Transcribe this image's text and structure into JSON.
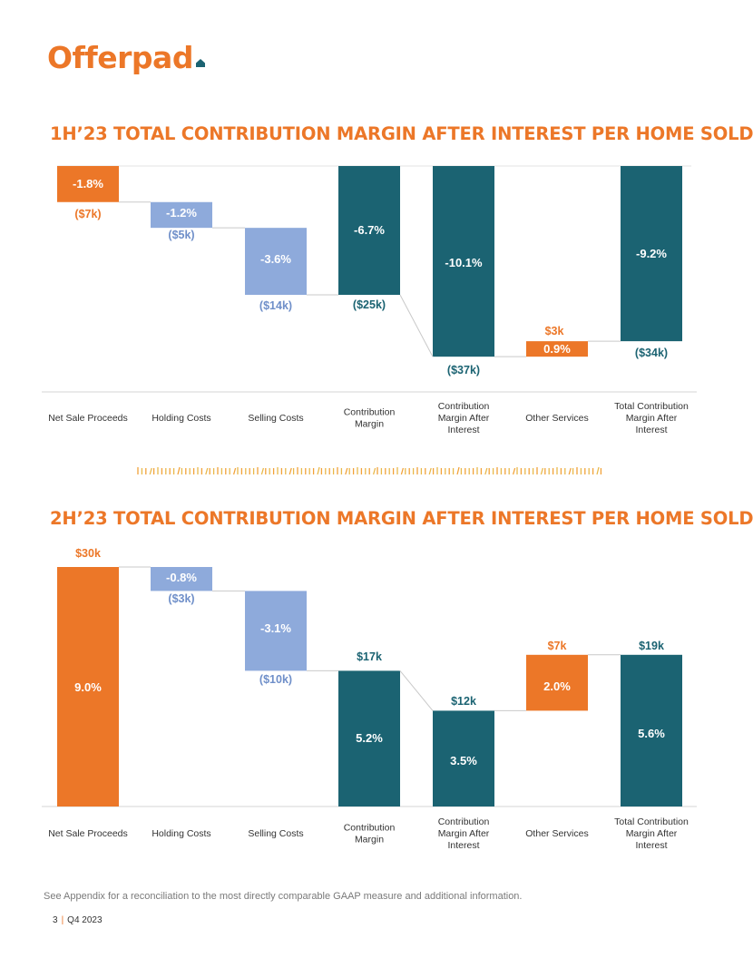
{
  "brand": {
    "name": "Offerpad",
    "accent": "#ec7728",
    "teal": "#1b6372",
    "blue": "#8eaadb",
    "blue_text": "#6f8fc9"
  },
  "footnote": "See Appendix for a reconciliation to the most directly comparable GAAP measure and additional information.",
  "page": {
    "number": "3",
    "separator": "|",
    "period": "Q4 2023"
  },
  "chart_data": [
    {
      "type": "waterfall",
      "title": "1H’23 TOTAL CONTRIBUTION MARGIN AFTER INTEREST PER HOME SOLD",
      "categories": [
        "Net Sale Proceeds",
        "Holding Costs",
        "Selling Costs",
        "Contribution Margin",
        "Contribution Margin After Interest",
        "Other Services",
        "Total Contribution Margin After Interest"
      ],
      "category_lines": [
        [
          "Net Sale Proceeds"
        ],
        [
          "Holding Costs"
        ],
        [
          "Selling Costs"
        ],
        [
          "Contribution",
          "Margin"
        ],
        [
          "Contribution",
          "Margin After",
          "Interest"
        ],
        [
          "Other Services"
        ],
        [
          "Total Contribution",
          "Margin After",
          "Interest"
        ]
      ],
      "unit": "$k",
      "bars": [
        {
          "label": "Net Sale Proceeds",
          "from": 0,
          "to": -7,
          "color": "orange",
          "pct": "-1.8%",
          "amount": "($7k)"
        },
        {
          "label": "Holding Costs",
          "from": -7,
          "to": -12,
          "color": "blue",
          "pct": "-1.2%",
          "amount": "($5k)"
        },
        {
          "label": "Selling Costs",
          "from": -12,
          "to": -25,
          "color": "blue",
          "pct": "-3.6%",
          "amount": "($14k)"
        },
        {
          "label": "Contribution Margin",
          "from": 0,
          "to": -25,
          "color": "teal",
          "pct": "-6.7%",
          "amount": "($25k)"
        },
        {
          "label": "Contribution Margin After Interest",
          "from": 0,
          "to": -37,
          "color": "teal",
          "pct": "-10.1%",
          "amount": "($37k)"
        },
        {
          "label": "Other Services",
          "from": -37,
          "to": -34,
          "color": "orange",
          "pct": "0.9%",
          "amount": "$3k"
        },
        {
          "label": "Total Contribution Margin After Interest",
          "from": 0,
          "to": -34,
          "color": "teal",
          "pct": "-9.2%",
          "amount": "($34k)"
        }
      ],
      "ylim": [
        -37,
        0
      ]
    },
    {
      "type": "waterfall",
      "title": "2H’23 TOTAL CONTRIBUTION MARGIN AFTER INTEREST PER HOME SOLD",
      "categories": [
        "Net Sale Proceeds",
        "Holding Costs",
        "Selling Costs",
        "Contribution Margin",
        "Contribution Margin After Interest",
        "Other Services",
        "Total Contribution Margin After Interest"
      ],
      "category_lines": [
        [
          "Net Sale Proceeds"
        ],
        [
          "Holding Costs"
        ],
        [
          "Selling Costs"
        ],
        [
          "Contribution",
          "Margin"
        ],
        [
          "Contribution",
          "Margin After",
          "Interest"
        ],
        [
          "Other Services"
        ],
        [
          "Total Contribution",
          "Margin After",
          "Interest"
        ]
      ],
      "unit": "$k",
      "bars": [
        {
          "label": "Net Sale Proceeds",
          "from": 0,
          "to": 30,
          "color": "orange",
          "pct": "9.0%",
          "amount": "$30k"
        },
        {
          "label": "Holding Costs",
          "from": 30,
          "to": 27,
          "color": "blue",
          "pct": "-0.8%",
          "amount": "($3k)"
        },
        {
          "label": "Selling Costs",
          "from": 27,
          "to": 17,
          "color": "blue",
          "pct": "-3.1%",
          "amount": "($10k)"
        },
        {
          "label": "Contribution Margin",
          "from": 0,
          "to": 17,
          "color": "teal",
          "pct": "5.2%",
          "amount": "$17k"
        },
        {
          "label": "Contribution Margin After Interest",
          "from": 0,
          "to": 12,
          "color": "teal",
          "pct": "3.5%",
          "amount": "$12k"
        },
        {
          "label": "Other Services",
          "from": 12,
          "to": 19,
          "color": "orange",
          "pct": "2.0%",
          "amount": "$7k"
        },
        {
          "label": "Total Contribution Margin After Interest",
          "from": 0,
          "to": 19,
          "color": "teal",
          "pct": "5.6%",
          "amount": "$19k"
        }
      ],
      "ylim": [
        0,
        30
      ]
    }
  ]
}
